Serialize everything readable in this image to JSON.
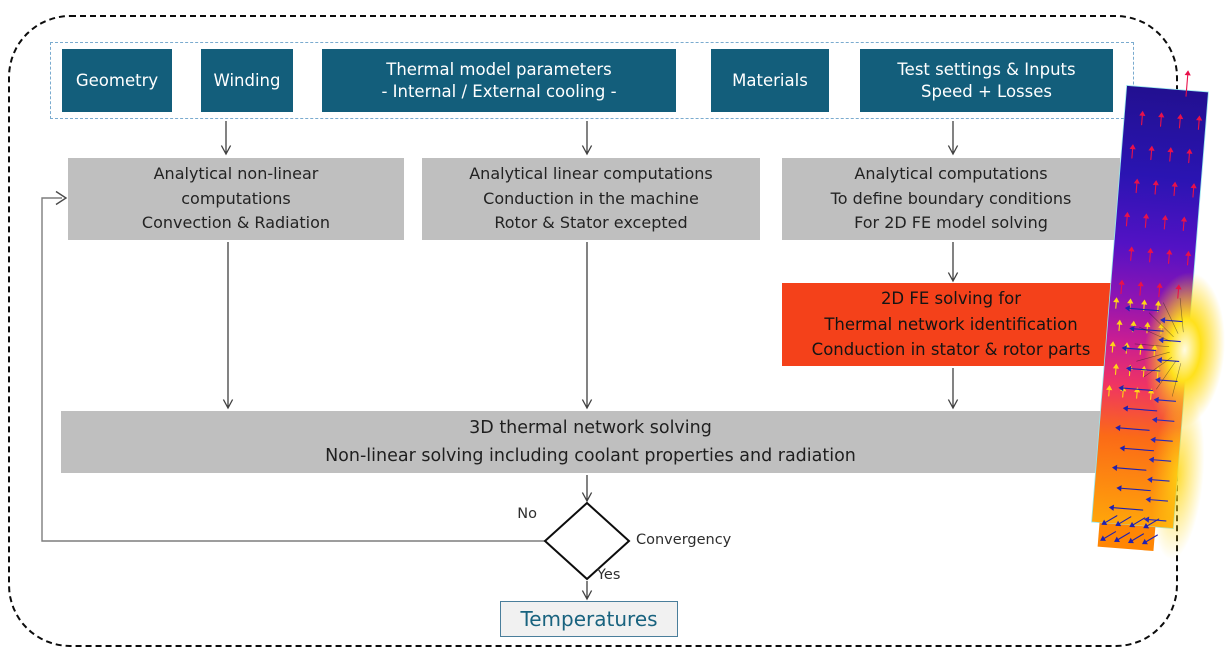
{
  "palette": {
    "teal_box": "#135e7b",
    "gray_box": "#bfbfbf",
    "orange_box": "#f4411a",
    "arrow_line": "#404040",
    "feedback_line": "#7d7d7d",
    "result_text": "#19637f",
    "inputs_border": "#7aabcf"
  },
  "inputs": [
    {
      "line1": "Geometry",
      "line2": ""
    },
    {
      "line1": "Winding",
      "line2": ""
    },
    {
      "line1": "Thermal model parameters",
      "line2": "- Internal / External cooling -"
    },
    {
      "line1": "Materials",
      "line2": ""
    },
    {
      "line1": "Test settings & Inputs",
      "line2": "Speed + Losses"
    }
  ],
  "analytical": [
    {
      "line1": "Analytical non-linear",
      "line2": "computations",
      "line3": "Convection & Radiation"
    },
    {
      "line1": "Analytical linear computations",
      "line2": "Conduction in the machine",
      "line3": "Rotor & Stator excepted"
    },
    {
      "line1": "Analytical computations",
      "line2": "To define boundary conditions",
      "line3": "For 2D FE model solving"
    }
  ],
  "fe_solving": {
    "line1": "2D FE solving for",
    "line2": "Thermal network identification",
    "line3": "Conduction in stator & rotor parts"
  },
  "network": {
    "line1": "3D thermal network solving",
    "line2": "Non-linear solving including coolant properties and radiation"
  },
  "decision": {
    "label": "Convergency",
    "no_label": "No",
    "yes_label": "Yes"
  },
  "result": {
    "label": "Temperatures"
  }
}
